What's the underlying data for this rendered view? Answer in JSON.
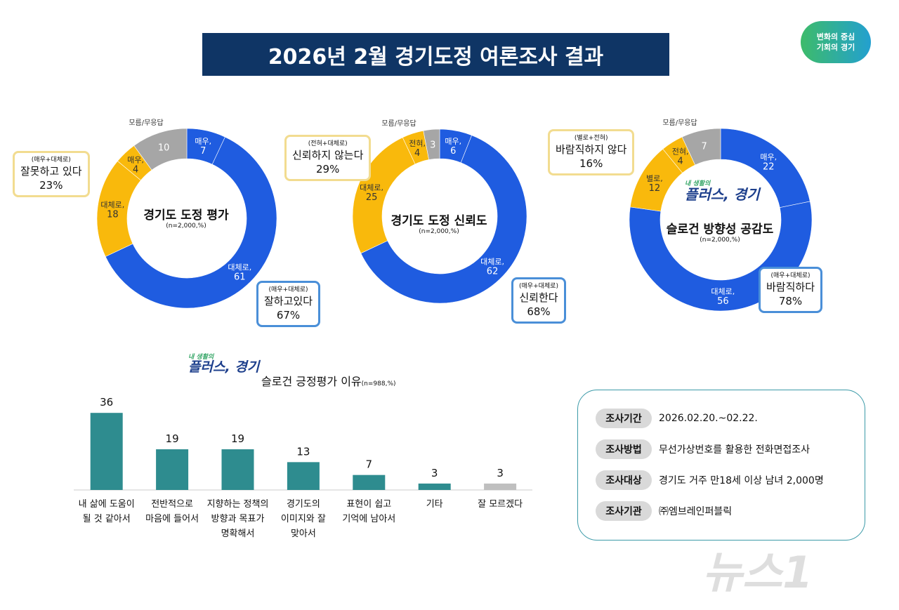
{
  "title": "2026년 2월 경기도정 여론조사 결과",
  "logo": {
    "line1": "변화의 중심",
    "line2": "기회의 경기"
  },
  "slogan_logo": {
    "small": "내 생활의",
    "main": "플러스, 경기"
  },
  "colors": {
    "blue": "#1f5ce0",
    "yellow": "#f9b90c",
    "gray": "#a6a6a6",
    "teal": "#2e8c8f",
    "navy": "#0f3565"
  },
  "chart_data": [
    {
      "type": "pie",
      "title": "경기도 도정 평가",
      "subtitle": "(n=2,000,%)",
      "slices": [
        {
          "label": "매우,",
          "value": 7,
          "color": "#1f5ce0"
        },
        {
          "label": "대체로,",
          "value": 61,
          "color": "#1f5ce0"
        },
        {
          "label": "대체로,",
          "value": 18,
          "color": "#f9b90c"
        },
        {
          "label": "매우,",
          "value": 4,
          "color": "#f9b90c"
        },
        {
          "label": "",
          "value": 10,
          "color": "#a6a6a6"
        }
      ],
      "dk_label": "모름/무응답",
      "neg": {
        "sub": "(매우+대체로)",
        "label": "잘못하고 있다",
        "pct": "23%"
      },
      "pos": {
        "sub": "(매우+대체로)",
        "label": "잘하고있다",
        "pct": "67%"
      }
    },
    {
      "type": "pie",
      "title": "경기도 도정 신뢰도",
      "subtitle": "(n=2,000,%)",
      "slices": [
        {
          "label": "매우,",
          "value": 6,
          "color": "#1f5ce0"
        },
        {
          "label": "대체로,",
          "value": 62,
          "color": "#1f5ce0"
        },
        {
          "label": "대체로,",
          "value": 25,
          "color": "#f9b90c"
        },
        {
          "label": "전혀,",
          "value": 4,
          "color": "#f9b90c"
        },
        {
          "label": "",
          "value": 3,
          "color": "#a6a6a6"
        }
      ],
      "dk_label": "모름/무응답",
      "neg": {
        "sub": "(전혀+대체로)",
        "label": "신뢰하지 않는다",
        "pct": "29%"
      },
      "pos": {
        "sub": "(매우+대체로)",
        "label": "신뢰한다",
        "pct": "68%"
      }
    },
    {
      "type": "pie",
      "title": "슬로건 방향성 공감도",
      "subtitle": "(n=2,000,%)",
      "slices": [
        {
          "label": "매우,",
          "value": 22,
          "color": "#1f5ce0"
        },
        {
          "label": "대체로,",
          "value": 56,
          "color": "#1f5ce0"
        },
        {
          "label": "별로,",
          "value": 12,
          "color": "#f9b90c"
        },
        {
          "label": "전혀,",
          "value": 4,
          "color": "#f9b90c"
        },
        {
          "label": "",
          "value": 7,
          "color": "#a6a6a6"
        }
      ],
      "dk_label": "모름/무응답",
      "neg": {
        "sub": "(별로+전혀)",
        "label": "바람직하지 않다",
        "pct": "16%"
      },
      "pos": {
        "sub": "(매우+대체로)",
        "label": "바람직하다",
        "pct": "78%"
      }
    },
    {
      "type": "bar",
      "title": "슬로건 긍정평가 이유",
      "subtitle": "(n=988,%)",
      "categories": [
        "내 삶에 도움이 될 것 같아서",
        "전반적으로 마음에 들어서",
        "지향하는 정책의 방향과 목표가 명확해서",
        "경기도의 이미지와 잘 맞아서",
        "표현이 쉽고 기억에 남아서",
        "기타",
        "잘 모르겠다"
      ],
      "category_lines": [
        [
          "내 삶에 도움이",
          "될 것 같아서"
        ],
        [
          "전반적으로",
          "마음에 들어서"
        ],
        [
          "지향하는 정책의",
          "방향과 목표가",
          "명확해서"
        ],
        [
          "경기도의",
          "이미지와 잘",
          "맞아서"
        ],
        [
          "표현이 쉽고",
          "기억에 남아서"
        ],
        [
          "기타"
        ],
        [
          "잘 모르겠다"
        ]
      ],
      "values": [
        36,
        19,
        19,
        13,
        7,
        3,
        3
      ],
      "bar_colors": [
        "#2e8c8f",
        "#2e8c8f",
        "#2e8c8f",
        "#2e8c8f",
        "#2e8c8f",
        "#2e8c8f",
        "#bfbfbf"
      ]
    }
  ],
  "info": [
    {
      "key": "조사기간",
      "value": "2026.02.20.~02.22."
    },
    {
      "key": "조사방법",
      "value": "무선가상번호를 활용한 전화면접조사"
    },
    {
      "key": "조사대상",
      "value": "경기도 거주 만18세 이상 남녀 2,000명"
    },
    {
      "key": "조사기관",
      "value": "㈜엠브레인퍼블릭"
    }
  ],
  "watermark": "뉴스1"
}
